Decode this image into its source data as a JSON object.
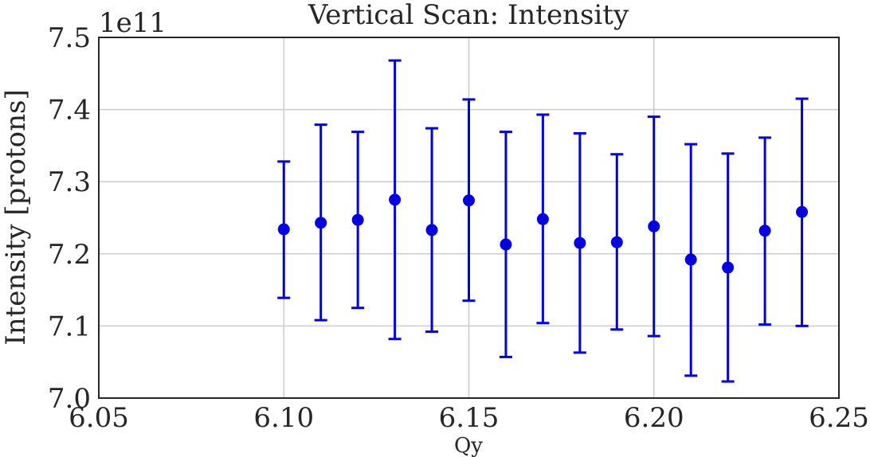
{
  "chart_data": {
    "type": "scatter",
    "title": "Vertical Scan: Intensity",
    "xlabel": "Qy",
    "ylabel": "Intensity [protons]",
    "y_offset_text": "1e11",
    "xlim": [
      6.05,
      6.25
    ],
    "ylim": [
      7.0,
      7.5
    ],
    "x_ticks": [
      "6.05",
      "6.10",
      "6.15",
      "6.20",
      "6.25"
    ],
    "y_ticks": [
      "7.0",
      "7.1",
      "7.2",
      "7.3",
      "7.4",
      "7.5"
    ],
    "grid": true,
    "marker_color": "#0000e6",
    "points": [
      {
        "x": 6.1,
        "y": 7.234,
        "err_low": 7.139,
        "err_high": 7.328
      },
      {
        "x": 6.11,
        "y": 7.243,
        "err_low": 7.108,
        "err_high": 7.379
      },
      {
        "x": 6.12,
        "y": 7.247,
        "err_low": 7.125,
        "err_high": 7.369
      },
      {
        "x": 6.13,
        "y": 7.275,
        "err_low": 7.082,
        "err_high": 7.468
      },
      {
        "x": 6.14,
        "y": 7.233,
        "err_low": 7.092,
        "err_high": 7.374
      },
      {
        "x": 6.15,
        "y": 7.274,
        "err_low": 7.135,
        "err_high": 7.414
      },
      {
        "x": 6.16,
        "y": 7.213,
        "err_low": 7.057,
        "err_high": 7.369
      },
      {
        "x": 6.17,
        "y": 7.248,
        "err_low": 7.104,
        "err_high": 7.393
      },
      {
        "x": 6.18,
        "y": 7.215,
        "err_low": 7.063,
        "err_high": 7.367
      },
      {
        "x": 6.19,
        "y": 7.216,
        "err_low": 7.095,
        "err_high": 7.338
      },
      {
        "x": 6.2,
        "y": 7.238,
        "err_low": 7.086,
        "err_high": 7.39
      },
      {
        "x": 6.21,
        "y": 7.192,
        "err_low": 7.031,
        "err_high": 7.352
      },
      {
        "x": 6.22,
        "y": 7.181,
        "err_low": 7.023,
        "err_high": 7.339
      },
      {
        "x": 6.23,
        "y": 7.232,
        "err_low": 7.102,
        "err_high": 7.361
      },
      {
        "x": 6.24,
        "y": 7.258,
        "err_low": 7.1,
        "err_high": 7.415
      }
    ]
  }
}
